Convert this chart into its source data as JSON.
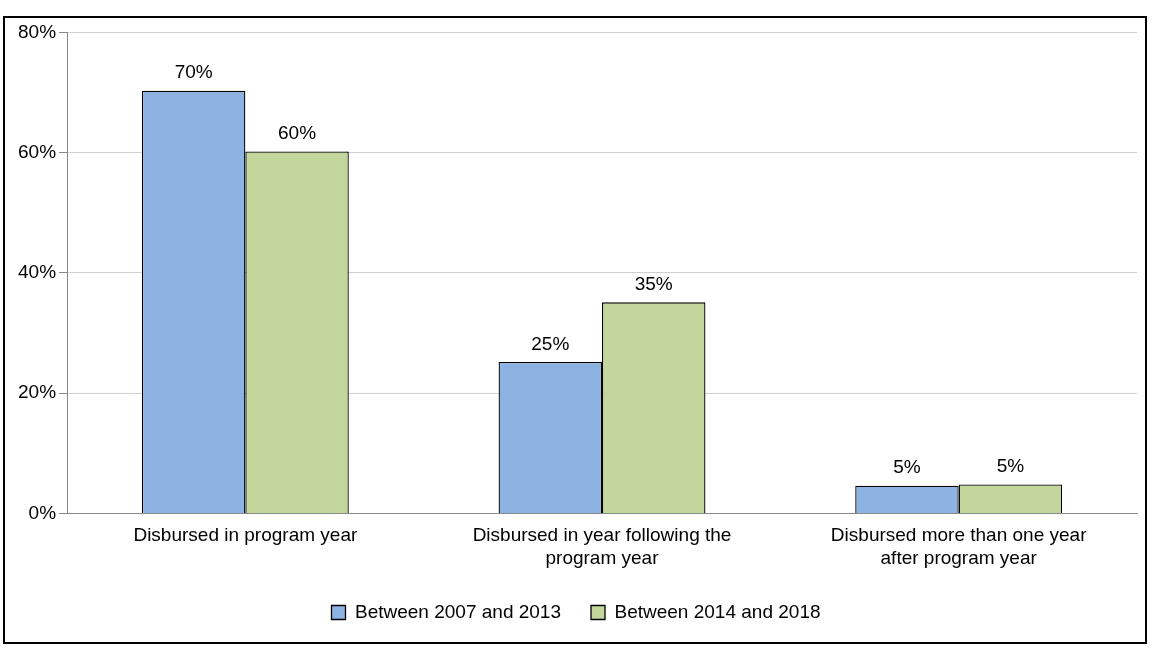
{
  "chart_data": {
    "type": "bar",
    "categories": [
      "Disbursed in program year",
      "Disbursed in year following the program year",
      "Disbursed more than one year after program year"
    ],
    "series": [
      {
        "name": "Between 2007 and 2013",
        "color": "#8db3e2",
        "values": [
          70.3,
          25.2,
          4.6
        ],
        "value_labels": [
          "70%",
          "25%",
          "5%"
        ]
      },
      {
        "name": "Between 2014 and 2018",
        "color": "#c3d69b",
        "values": [
          60.2,
          35.1,
          4.8
        ],
        "value_labels": [
          "60%",
          "35%",
          "5%"
        ]
      }
    ],
    "ylim": [
      0,
      80
    ],
    "yticks": [
      {
        "value": 0,
        "label": "0%"
      },
      {
        "value": 20,
        "label": "20%"
      },
      {
        "value": 40,
        "label": "40%"
      },
      {
        "value": 60,
        "label": "60%"
      },
      {
        "value": 80,
        "label": "80%"
      }
    ],
    "grid": "y",
    "legend": "bottom"
  }
}
